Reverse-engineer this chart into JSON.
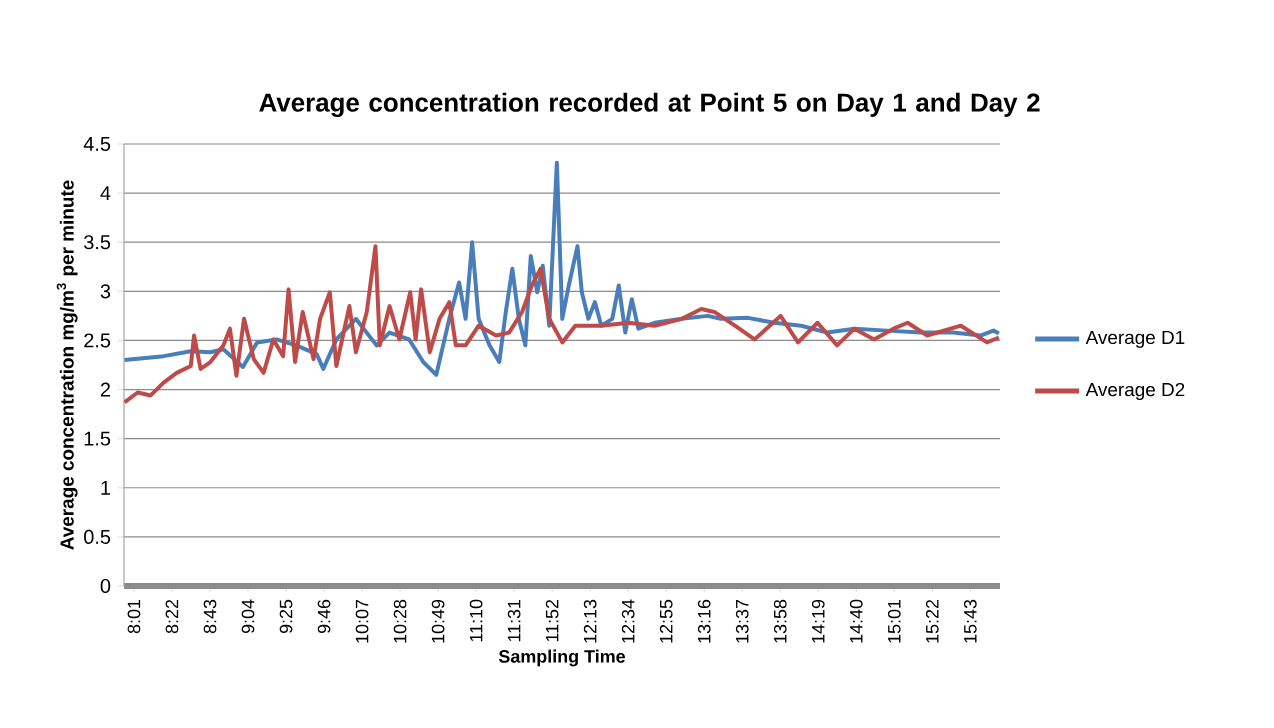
{
  "chart_data": {
    "type": "line",
    "title": "Average concentration recorded at Point 5 on Day 1 and Day 2",
    "xlabel": "Sampling Time",
    "ylabel": "Average concentration mg/m$^{3}$ per minute",
    "xlim": [
      7.925,
      15.99
    ],
    "ylim": [
      0,
      4.5
    ],
    "xticks": [
      {
        "value": 8.0167,
        "label": "8:01"
      },
      {
        "value": 8.3667,
        "label": "8:22"
      },
      {
        "value": 8.7167,
        "label": "8:43"
      },
      {
        "value": 9.0667,
        "label": "9:04"
      },
      {
        "value": 9.4167,
        "label": "9:25"
      },
      {
        "value": 9.7667,
        "label": "9:46"
      },
      {
        "value": 10.1167,
        "label": "10:07"
      },
      {
        "value": 10.4667,
        "label": "10:28"
      },
      {
        "value": 10.8167,
        "label": "10:49"
      },
      {
        "value": 11.1667,
        "label": "11:10"
      },
      {
        "value": 11.5167,
        "label": "11:31"
      },
      {
        "value": 11.8667,
        "label": "11:52"
      },
      {
        "value": 12.2167,
        "label": "12:13"
      },
      {
        "value": 12.5667,
        "label": "12:34"
      },
      {
        "value": 12.9167,
        "label": "12:55"
      },
      {
        "value": 13.2667,
        "label": "13:16"
      },
      {
        "value": 13.6167,
        "label": "13:37"
      },
      {
        "value": 13.9667,
        "label": "13:58"
      },
      {
        "value": 14.3167,
        "label": "14:19"
      },
      {
        "value": 14.6667,
        "label": "14:40"
      },
      {
        "value": 15.0167,
        "label": "15:01"
      },
      {
        "value": 15.3667,
        "label": "15:22"
      },
      {
        "value": 15.7167,
        "label": "15:43"
      }
    ],
    "yticks": [
      0,
      0.5,
      1,
      1.5,
      2,
      2.5,
      3,
      3.5,
      4,
      4.5
    ],
    "grid": "y",
    "legend": "right",
    "marker": "none",
    "line_style": "solid",
    "series": [
      {
        "name": "Average D1",
        "color": "#4a7ebb",
        "x": [
          7.93,
          8.29,
          8.54,
          8.72,
          8.84,
          9.02,
          9.15,
          9.33,
          9.51,
          9.7,
          9.76,
          9.88,
          10.06,
          10.25,
          10.37,
          10.55,
          10.68,
          10.8,
          10.92,
          11.01,
          11.07,
          11.13,
          11.19,
          11.29,
          11.38,
          11.44,
          11.5,
          11.56,
          11.62,
          11.67,
          11.73,
          11.78,
          11.84,
          11.91,
          11.96,
          12.02,
          12.1,
          12.14,
          12.2,
          12.26,
          12.32,
          12.42,
          12.48,
          12.54,
          12.6,
          12.66,
          12.81,
          13.06,
          13.3,
          13.42,
          13.67,
          13.91,
          14.16,
          14.4,
          14.65,
          14.95,
          15.26,
          15.56,
          15.81,
          15.93,
          15.98
        ],
        "values": [
          2.3,
          2.34,
          2.39,
          2.38,
          2.41,
          2.23,
          2.48,
          2.51,
          2.45,
          2.36,
          2.21,
          2.51,
          2.72,
          2.45,
          2.58,
          2.51,
          2.28,
          2.15,
          2.72,
          3.09,
          2.72,
          3.5,
          2.72,
          2.45,
          2.28,
          2.79,
          3.23,
          2.72,
          2.45,
          3.36,
          2.99,
          3.26,
          2.65,
          4.31,
          2.72,
          3.06,
          3.46,
          2.99,
          2.72,
          2.89,
          2.65,
          2.72,
          3.06,
          2.58,
          2.92,
          2.62,
          2.68,
          2.72,
          2.75,
          2.72,
          2.73,
          2.68,
          2.65,
          2.58,
          2.62,
          2.6,
          2.58,
          2.58,
          2.55,
          2.6,
          2.57
        ]
      },
      {
        "name": "Average D2",
        "color": "#be4b48",
        "x": [
          7.93,
          8.05,
          8.17,
          8.29,
          8.41,
          8.54,
          8.57,
          8.63,
          8.72,
          8.84,
          8.9,
          8.96,
          9.03,
          9.12,
          9.21,
          9.3,
          9.39,
          9.44,
          9.5,
          9.57,
          9.67,
          9.73,
          9.82,
          9.88,
          10.0,
          10.06,
          10.16,
          10.24,
          10.28,
          10.37,
          10.46,
          10.56,
          10.61,
          10.66,
          10.74,
          10.83,
          10.92,
          10.98,
          11.07,
          11.19,
          11.35,
          11.47,
          11.59,
          11.68,
          11.76,
          11.84,
          11.96,
          12.08,
          12.32,
          12.57,
          12.81,
          13.06,
          13.24,
          13.36,
          13.55,
          13.73,
          13.97,
          14.13,
          14.31,
          14.49,
          14.65,
          14.83,
          15.01,
          15.14,
          15.32,
          15.63,
          15.87,
          15.98
        ],
        "values": [
          1.87,
          1.97,
          1.94,
          2.07,
          2.17,
          2.24,
          2.55,
          2.21,
          2.28,
          2.45,
          2.62,
          2.14,
          2.72,
          2.31,
          2.17,
          2.51,
          2.34,
          3.02,
          2.28,
          2.79,
          2.31,
          2.72,
          2.99,
          2.24,
          2.85,
          2.38,
          2.79,
          3.46,
          2.45,
          2.85,
          2.51,
          2.99,
          2.51,
          3.02,
          2.38,
          2.72,
          2.89,
          2.45,
          2.45,
          2.65,
          2.55,
          2.58,
          2.79,
          3.06,
          3.23,
          2.72,
          2.48,
          2.65,
          2.65,
          2.68,
          2.65,
          2.72,
          2.82,
          2.79,
          2.65,
          2.51,
          2.75,
          2.48,
          2.68,
          2.45,
          2.62,
          2.51,
          2.62,
          2.68,
          2.55,
          2.65,
          2.48,
          2.53
        ]
      }
    ]
  }
}
